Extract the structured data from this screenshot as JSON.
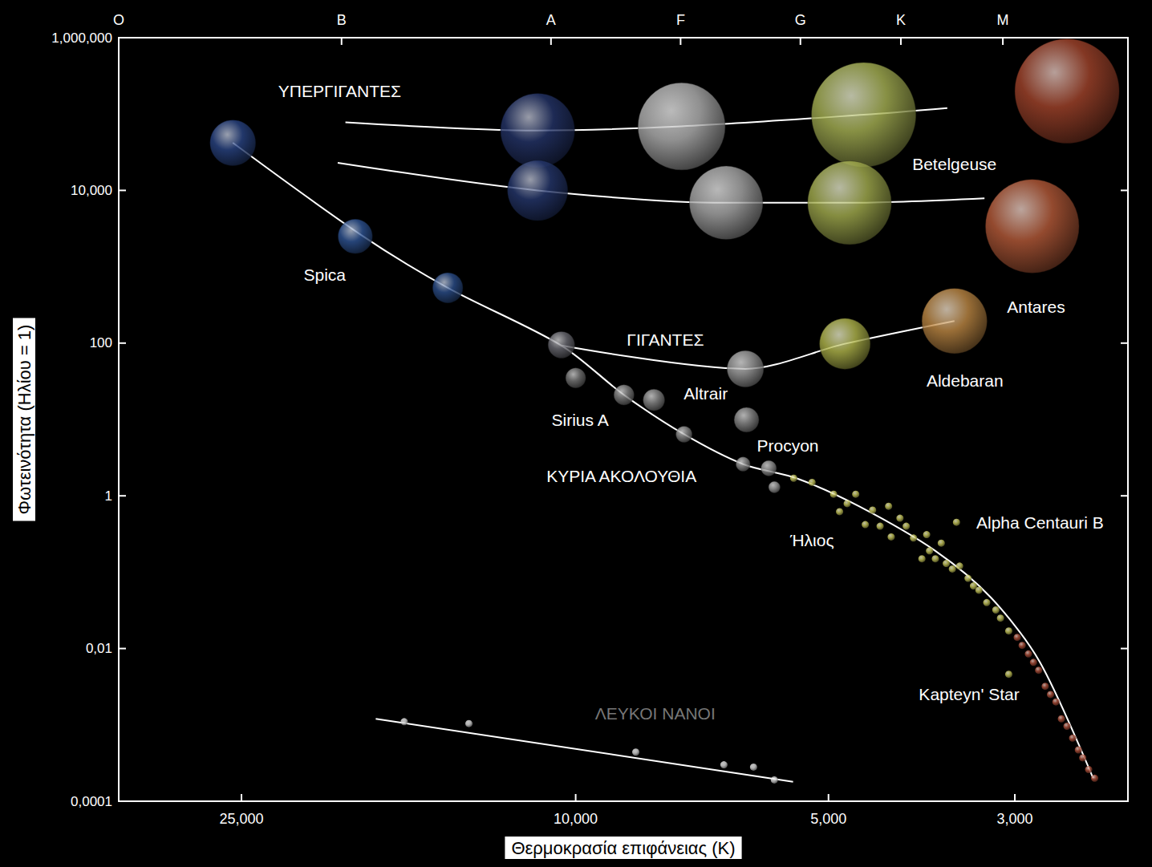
{
  "chart_data": {
    "type": "scatter",
    "log": true,
    "grid": false,
    "xlabel": "Θερμοκρασία επιφάνειας (K)",
    "ylabel": "Φωτεινότητα (Ηλίου = 1)",
    "xlim": [
      35000,
      2200
    ],
    "ylim": [
      0.0001,
      1000000
    ],
    "xticks": [
      {
        "value": 25000,
        "label": "25,000"
      },
      {
        "value": 10000,
        "label": "10,000"
      },
      {
        "value": 5000,
        "label": "5,000"
      },
      {
        "value": 3000,
        "label": "3,000"
      }
    ],
    "x2ticks": [
      {
        "value": 35000,
        "label": "O"
      },
      {
        "value": 19000,
        "label": "B"
      },
      {
        "value": 10700,
        "label": "A"
      },
      {
        "value": 7500,
        "label": "F"
      },
      {
        "value": 5400,
        "label": "G"
      },
      {
        "value": 4100,
        "label": "K"
      },
      {
        "value": 3100,
        "label": "M"
      }
    ],
    "yticks": [
      {
        "value": 0.0001,
        "label": "0,0001"
      },
      {
        "value": 0.01,
        "label": "0,01"
      },
      1,
      100,
      {
        "value": 10000,
        "label": "10,000"
      },
      {
        "value": 1000000,
        "label": "1,000,000"
      }
    ],
    "series": [
      {
        "type": "line",
        "color": "#ffffff",
        "line_style": "solid",
        "x": [
          25600,
          18000,
          14200,
          10400,
          8760,
          7430,
          6320,
          5460,
          4600,
          3730,
          3200,
          2800,
          2420
        ],
        "values": [
          42000,
          2600,
          530,
          93,
          21,
          6.4,
          2.6,
          1.7,
          0.73,
          0.19,
          0.046,
          0.0066,
          0.0002
        ]
      },
      {
        "type": "line",
        "color": "#ffffff",
        "line_style": "solid",
        "x": [
          10400,
          6280,
          4780,
          3540
        ],
        "values": [
          93,
          46,
          98,
          195
        ]
      },
      {
        "type": "line",
        "color": "#ffffff",
        "line_style": "solid",
        "x": [
          18800,
          11100,
          7480,
          4540,
          3610
        ],
        "values": [
          78000,
          61000,
          69000,
          98000,
          120000
        ]
      },
      {
        "type": "line",
        "color": "#ffffff",
        "line_style": "solid",
        "x": [
          19200,
          11100,
          6620,
          4720,
          3260
        ],
        "values": [
          23000,
          10000,
          6900,
          6900,
          7900
        ]
      },
      {
        "type": "line",
        "color": "#ffffff",
        "line_style": "solid",
        "x": [
          17300,
          5510
        ],
        "values": [
          0.0012,
          0.00018
        ]
      },
      {
        "type": "scatter",
        "marker": "sphere",
        "x": [
          25600,
          18300,
          14200,
          10400,
          10000,
          8760,
          8070,
          7430,
          6260,
          6320,
          5890,
          5800,
          6280,
          4780,
          3540,
          11100,
          7480,
          4540,
          2600,
          11100,
          6620,
          4720,
          2860
        ],
        "values": [
          42000,
          2500,
          530,
          95,
          35,
          21,
          18,
          6.4,
          9.9,
          2.6,
          2.3,
          1.3,
          46,
          98,
          195,
          61000,
          69000,
          98000,
          200000,
          10000,
          6900,
          6900,
          3400
        ],
        "colors": [
          "#2a4585",
          "#2f5596",
          "#2c4f8c",
          "#6c6c74",
          "#7a7a7a",
          "#858585",
          "#8c8c8c",
          "#909090",
          "#8e8e8e",
          "#969696",
          "#9c9c9c",
          "#a4a4a4",
          "#9e9e9e",
          "#b3b84c",
          "#c08a45",
          "#25356a",
          "#b4b4b4",
          "#a9b455",
          "#a4452c",
          "#26386e",
          "#acacac",
          "#a6b050",
          "#b85c3a"
        ]
      },
      {
        "type": "scatter",
        "marker": "circle",
        "color": "#c9c95a",
        "x": [
          5500,
          5230,
          4930,
          4850,
          4750,
          4640,
          4520,
          4430,
          4340,
          4240,
          4210,
          4110,
          4040,
          3960,
          3870,
          3820,
          3790,
          3730,
          3670,
          3620,
          3560,
          3520,
          3490,
          3410,
          3360,
          3310,
          3240,
          3160,
          3120,
          3050,
          3050
        ],
        "values": [
          1.7,
          1.5,
          1.05,
          0.62,
          0.79,
          1.05,
          0.42,
          0.65,
          0.4,
          0.73,
          0.29,
          0.51,
          0.4,
          0.28,
          0.15,
          0.31,
          0.19,
          0.15,
          0.24,
          0.13,
          0.11,
          0.45,
          0.12,
          0.083,
          0.066,
          0.058,
          0.04,
          0.032,
          0.025,
          0.017,
          0.0046
        ]
      },
      {
        "type": "scatter",
        "marker": "circle",
        "color": "#b0503a",
        "x": [
          2980,
          2940,
          2890,
          2850,
          2810,
          2760,
          2720,
          2680,
          2640,
          2600,
          2560,
          2520,
          2490,
          2450,
          2410
        ],
        "values": [
          0.014,
          0.011,
          0.0085,
          0.0066,
          0.0052,
          0.0032,
          0.0025,
          0.002,
          0.0012,
          0.00096,
          0.00067,
          0.00047,
          0.00037,
          0.00026,
          0.0002
        ]
      },
      {
        "type": "scatter",
        "marker": "circle",
        "color": "#dddddd",
        "x": [
          16000,
          13400,
          8480,
          6660,
          6140,
          5800
        ],
        "values": [
          0.0011,
          0.00104,
          0.00044,
          0.0003,
          0.00028,
          0.00019
        ]
      }
    ],
    "annotations": [
      {
        "text": "ΥΠΕΡΓΙΓΑΝΤΕΣ",
        "x": 19100,
        "y": 200000
      },
      {
        "text": "Spica",
        "x": 19900,
        "y": 790
      },
      {
        "text": "ΓΙΓΑΝΤΕΣ",
        "x": 7820,
        "y": 110
      },
      {
        "text": "Sirius A",
        "x": 9880,
        "y": 10
      },
      {
        "text": "Altrair",
        "x": 7000,
        "y": 22
      },
      {
        "text": "Procyon",
        "x": 5590,
        "y": 4.6
      },
      {
        "text": "ΚΥΡΙΑ ΑΚΟΛΟΥΘΙΑ",
        "x": 8820,
        "y": 1.8
      },
      {
        "text": "Ήλιος",
        "x": 5230,
        "y": 0.26
      },
      {
        "text": "Alpha Centauri B",
        "x": 2800,
        "y": 0.45
      },
      {
        "text": "Kapteyn' Star",
        "x": 3400,
        "y": 0.0025
      },
      {
        "text": "Aldebaran",
        "x": 3440,
        "y": 32
      },
      {
        "text": "Antares",
        "x": 2830,
        "y": 296
      },
      {
        "text": "Betelgeuse",
        "x": 3540,
        "y": 22000
      },
      {
        "text": "ΛΕΥΚΟΙ ΝΑΝΟΙ",
        "x": 8040,
        "y": 0.0014,
        "color": "#777777"
      }
    ]
  }
}
